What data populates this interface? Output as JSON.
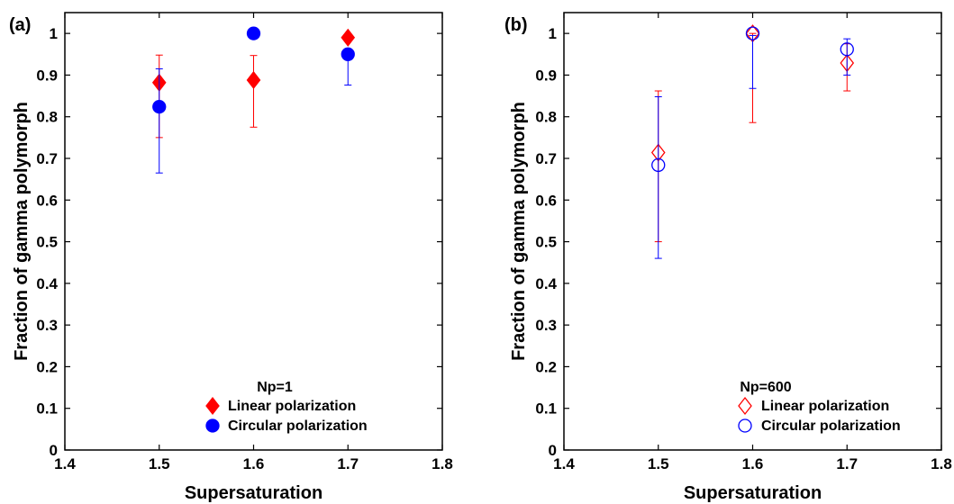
{
  "chart_data": [
    {
      "type": "scatter",
      "panel_label": "(a)",
      "xlabel": "Supersaturation",
      "ylabel": "Fraction of gamma polymorph",
      "xlim": [
        1.4,
        1.8
      ],
      "ylim": [
        0,
        1.05
      ],
      "xticks": [
        1.4,
        1.5,
        1.6,
        1.7,
        1.8
      ],
      "xtick_labels": [
        "1.4",
        "1.5",
        "1.6",
        "1.7",
        "1.8"
      ],
      "yticks": [
        0,
        0.1,
        0.2,
        0.3,
        0.4,
        0.5,
        0.6,
        0.7,
        0.8,
        0.9,
        1
      ],
      "ytick_labels": [
        "0",
        "0.1",
        "0.2",
        "0.3",
        "0.4",
        "0.5",
        "0.6",
        "0.7",
        "0.8",
        "0.9",
        "1"
      ],
      "grid": false,
      "legend": {
        "title": "Np=1",
        "placement": "bottom-right"
      },
      "series": [
        {
          "name": "Linear polarization",
          "color": "#ff0000",
          "marker": "diamond",
          "filled": true,
          "x": [
            1.5,
            1.6,
            1.7
          ],
          "y": [
            0.882,
            0.888,
            0.99
          ],
          "err_low": [
            0.75,
            0.775,
            0.99
          ],
          "err_high": [
            0.948,
            0.947,
            0.99
          ]
        },
        {
          "name": "Circular polarization",
          "color": "#0000ff",
          "marker": "circle",
          "filled": true,
          "x": [
            1.5,
            1.6,
            1.7
          ],
          "y": [
            0.824,
            1.0,
            0.95
          ],
          "err_low": [
            0.665,
            1.0,
            0.876
          ],
          "err_high": [
            0.915,
            1.0,
            0.95
          ]
        }
      ]
    },
    {
      "type": "scatter",
      "panel_label": "(b)",
      "xlabel": "Supersaturation",
      "ylabel": "Fraction of gamma polymorph",
      "xlim": [
        1.4,
        1.8
      ],
      "ylim": [
        0,
        1.05
      ],
      "xticks": [
        1.4,
        1.5,
        1.6,
        1.7,
        1.8
      ],
      "xtick_labels": [
        "1.4",
        "1.5",
        "1.6",
        "1.7",
        "1.8"
      ],
      "yticks": [
        0,
        0.1,
        0.2,
        0.3,
        0.4,
        0.5,
        0.6,
        0.7,
        0.8,
        0.9,
        1
      ],
      "ytick_labels": [
        "0",
        "0.1",
        "0.2",
        "0.3",
        "0.4",
        "0.5",
        "0.6",
        "0.7",
        "0.8",
        "0.9",
        "1"
      ],
      "grid": false,
      "legend": {
        "title": "Np=600",
        "placement": "bottom-right"
      },
      "series": [
        {
          "name": "Linear polarization",
          "color": "#ff0000",
          "marker": "diamond",
          "filled": false,
          "x": [
            1.5,
            1.6,
            1.7
          ],
          "y": [
            0.714,
            1.0,
            0.929
          ],
          "err_low": [
            0.5,
            0.786,
            0.862
          ],
          "err_high": [
            0.862,
            1.0,
            0.975
          ]
        },
        {
          "name": "Circular polarization",
          "color": "#0000ff",
          "marker": "circle",
          "filled": false,
          "x": [
            1.5,
            1.6,
            1.7
          ],
          "y": [
            0.684,
            1.0,
            0.962
          ],
          "err_low": [
            0.46,
            0.868,
            0.9
          ],
          "err_high": [
            0.848,
            0.995,
            0.987
          ]
        }
      ]
    }
  ]
}
